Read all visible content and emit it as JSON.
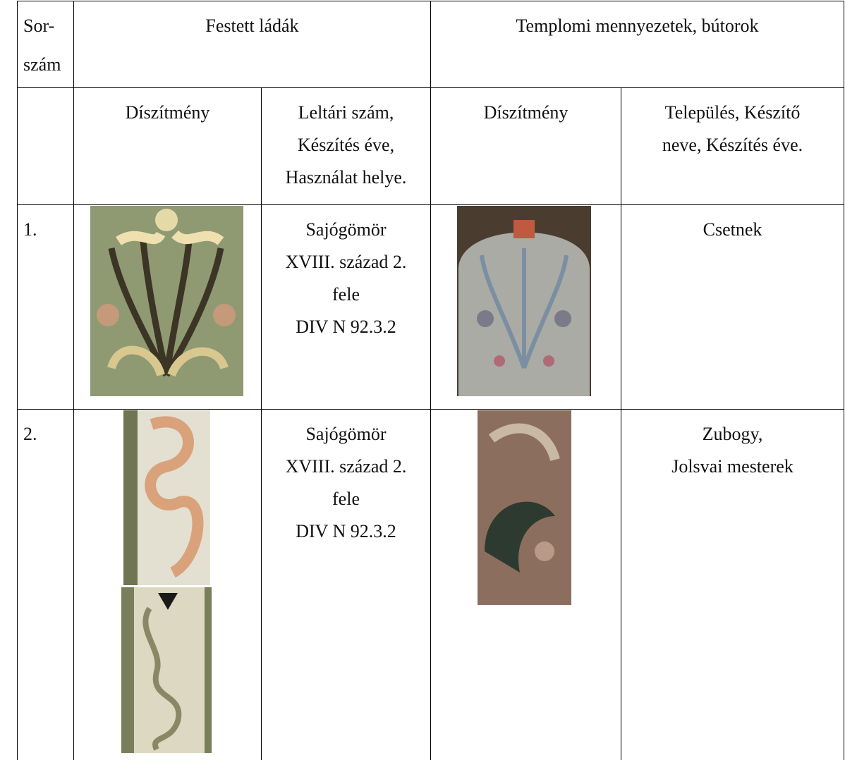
{
  "table": {
    "header": {
      "number_lines": [
        "Sor-",
        "szám"
      ],
      "chests": "Festett ládák",
      "church": "Templomi mennyezetek, bútorok"
    },
    "subheader": {
      "chest_decoration": "Díszítmény",
      "chest_info_lines": [
        "Leltári szám,",
        "Készítés éve,",
        "Használat helye."
      ],
      "church_decoration": "Díszítmény",
      "church_info_lines": [
        "Település, Készítő",
        "neve, Készítés éve."
      ]
    },
    "rows": [
      {
        "number": "1.",
        "chest_lines": [
          "Sajógömör",
          "XVIII. század 2.",
          "fele",
          "DIV N 92.3.2"
        ],
        "church_lines": [
          "Csetnek"
        ]
      },
      {
        "number": "2.",
        "chest_lines": [
          "Sajógömör",
          "XVIII. század 2.",
          "fele",
          "DIV N 92.3.2"
        ],
        "church_lines": [
          "Zubogy,",
          "Jolsvai mesterek"
        ]
      }
    ]
  }
}
